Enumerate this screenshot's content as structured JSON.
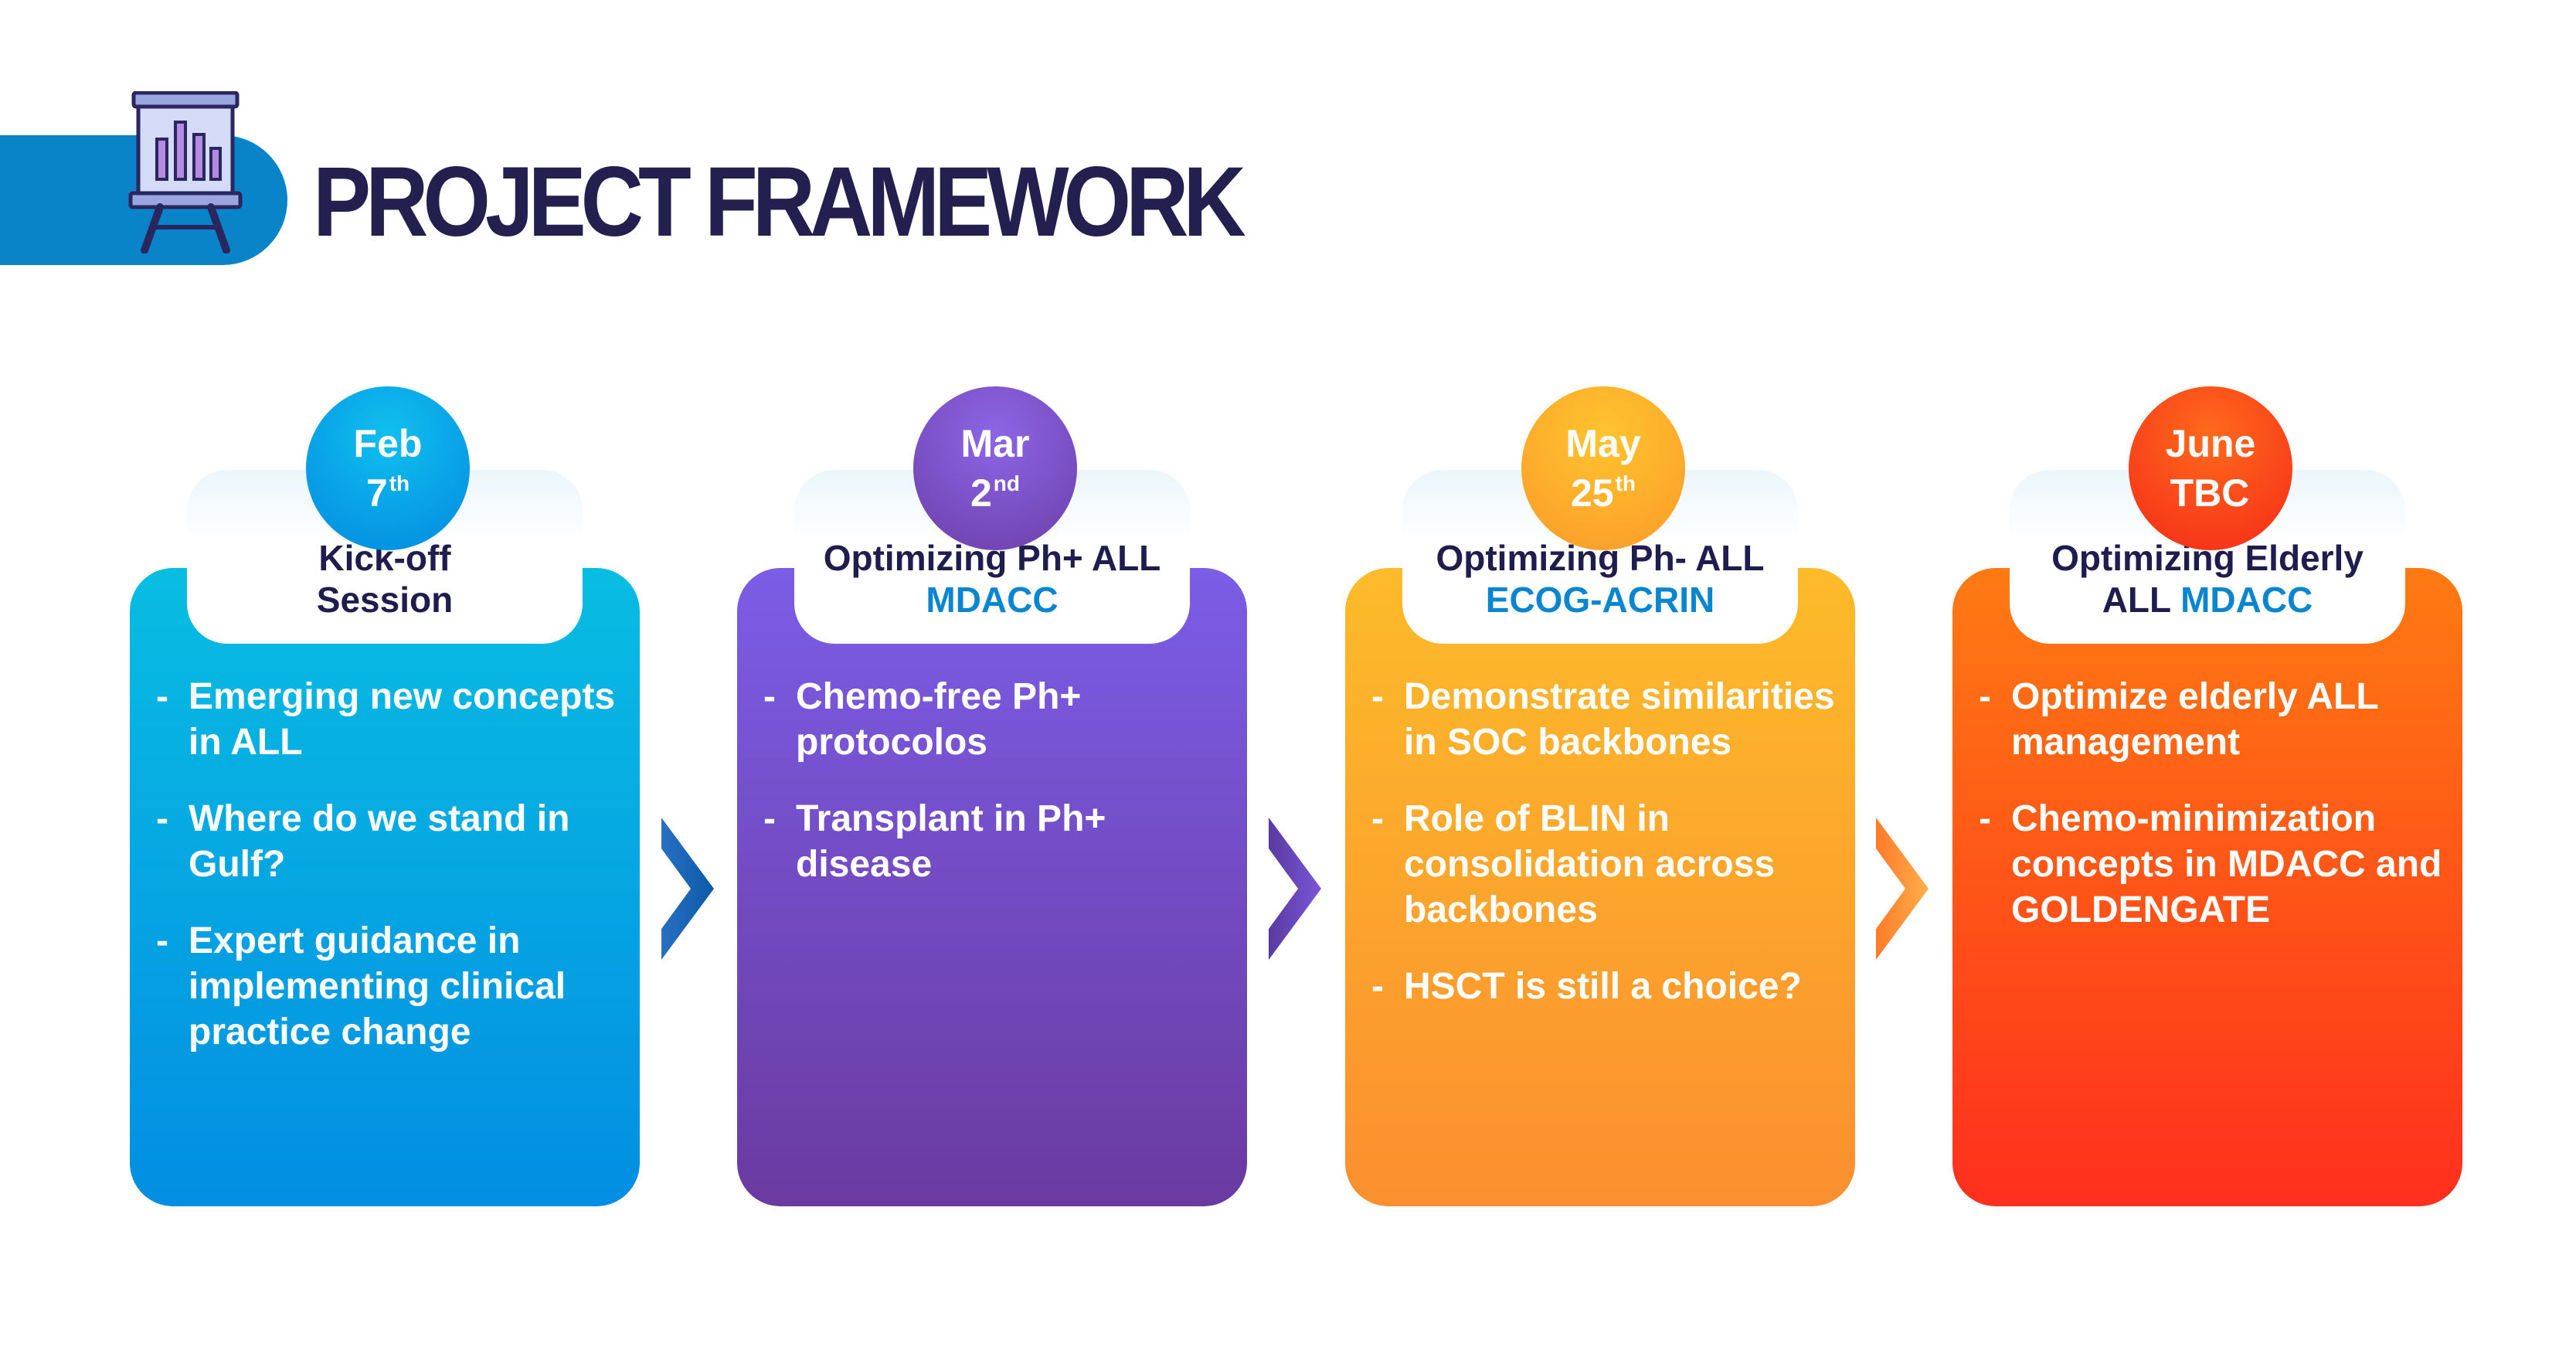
{
  "header": {
    "title": "PROJECT FRAMEWORK",
    "icon": "presentation-easel-icon"
  },
  "colors": {
    "header_blue": "#0a84c9",
    "title_navy": "#23204f",
    "highlight_blue": "#0a86cf",
    "stage_blue": "#0a9fe3",
    "stage_purple": "#7550d1",
    "stage_yellow": "#fdac2c",
    "stage_red": "#ff4b19"
  },
  "stages": [
    {
      "date_month": "Feb",
      "date_day": "7",
      "date_suffix": "th",
      "title_line1": "Kick-off",
      "title_line2": "Session",
      "title_highlight": "",
      "bullets": [
        "Emerging new concepts in ALL",
        "Where do we stand in Gulf?",
        "Expert guidance in implementing clinical practice change"
      ]
    },
    {
      "date_month": "Mar",
      "date_day": "2",
      "date_suffix": "nd",
      "title_line1": "Optimizing Ph+ ALL",
      "title_line2": "",
      "title_highlight": "MDACC",
      "bullets": [
        "Chemo-free Ph+ protocolos",
        "Transplant in Ph+ disease"
      ]
    },
    {
      "date_month": "May",
      "date_day": "25",
      "date_suffix": "th",
      "title_line1": "Optimizing Ph- ALL",
      "title_line2": "",
      "title_highlight": "ECOG-ACRIN",
      "bullets": [
        "Demonstrate similarities in SOC backbones",
        "Role of BLIN in consolidation across backbones",
        "HSCT is still a choice?"
      ]
    },
    {
      "date_month": "June",
      "date_day": "TBC",
      "date_suffix": "",
      "title_line1": "Optimizing  Elderly",
      "title_line2": "ALL",
      "title_highlight": "MDACC",
      "bullets": [
        "Optimize elderly ALL management",
        "Chemo-minimization concepts in MDACC and GOLDENGATE"
      ]
    }
  ]
}
